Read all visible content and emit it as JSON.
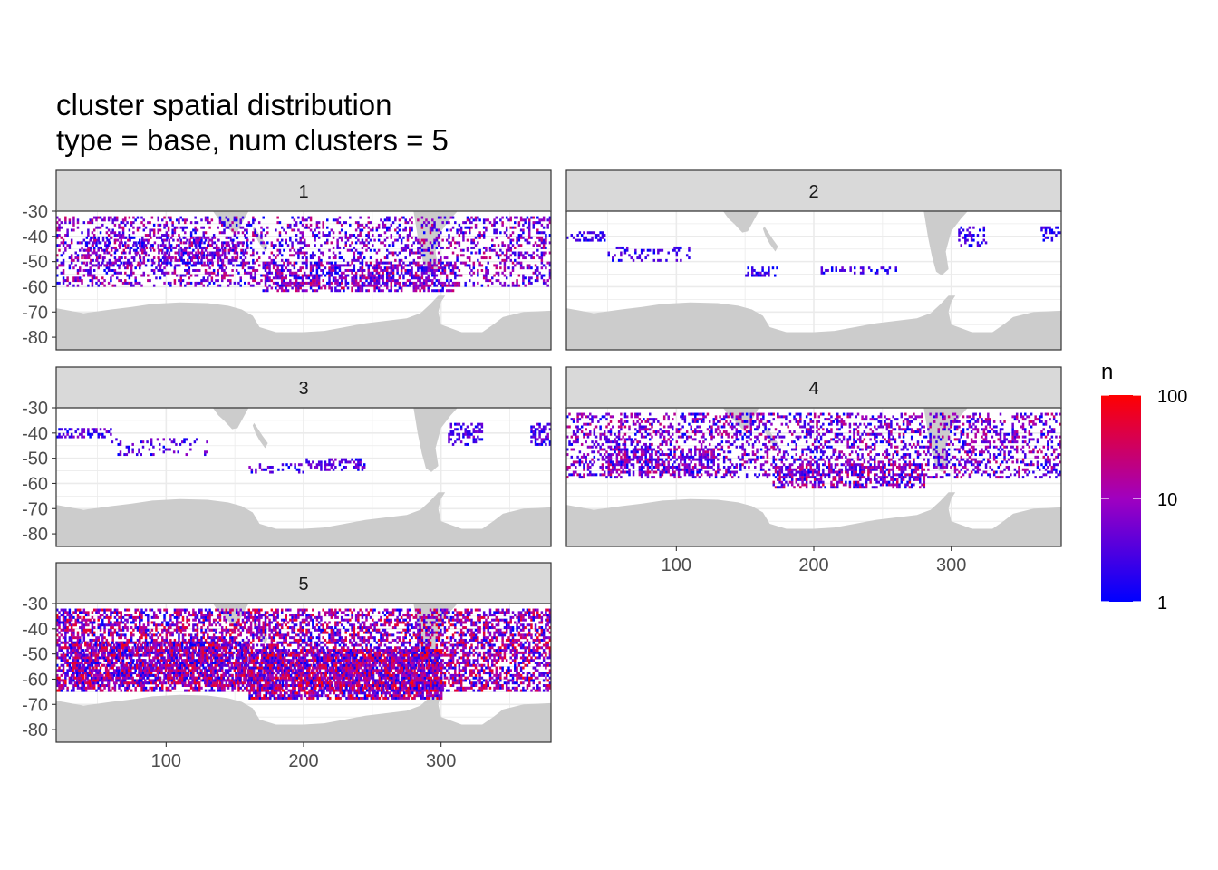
{
  "chart_data": {
    "type": "heatmap",
    "title": "cluster spatial distribution",
    "subtitle": "type = base, num clusters = 5",
    "xlabel": "",
    "ylabel": "",
    "xlim": [
      20,
      380
    ],
    "ylim": [
      -85,
      -30
    ],
    "x_ticks": [
      100,
      200,
      300
    ],
    "y_ticks": [
      -30,
      -40,
      -50,
      -60,
      -70,
      -80
    ],
    "facets": [
      "1",
      "2",
      "3",
      "4",
      "5"
    ],
    "fill_scale": {
      "name": "n",
      "trans": "log10",
      "limits": [
        1,
        100
      ],
      "breaks": [
        1,
        10,
        100
      ],
      "low": "#0000ff",
      "high": "#ff0000"
    },
    "land_color": "#cccccc",
    "panel_background": "#ffffff",
    "strip_background": "#d9d9d9",
    "grid": true,
    "legend_position": "right",
    "clusters": [
      {
        "id": "1",
        "bands": [
          {
            "lon": [
              20,
              380
            ],
            "lat": [
              -60,
              -32
            ],
            "density": 0.3,
            "nmax": 30
          },
          {
            "lon": [
              170,
              310
            ],
            "lat": [
              -62,
              -50
            ],
            "density": 0.45,
            "nmax": 40
          },
          {
            "lon": [
              40,
              160
            ],
            "lat": [
              -52,
              -40
            ],
            "density": 0.35,
            "nmax": 30
          }
        ]
      },
      {
        "id": "2",
        "bands": [
          {
            "lon": [
              20,
              50
            ],
            "lat": [
              -42,
              -38
            ],
            "density": 0.45,
            "nmax": 5
          },
          {
            "lon": [
              50,
              110
            ],
            "lat": [
              -50,
              -44
            ],
            "density": 0.25,
            "nmax": 5
          },
          {
            "lon": [
              150,
              175
            ],
            "lat": [
              -56,
              -52
            ],
            "density": 0.35,
            "nmax": 5
          },
          {
            "lon": [
              205,
              260
            ],
            "lat": [
              -55,
              -52
            ],
            "density": 0.3,
            "nmax": 5
          },
          {
            "lon": [
              305,
              325
            ],
            "lat": [
              -44,
              -36
            ],
            "density": 0.35,
            "nmax": 5
          },
          {
            "lon": [
              365,
              380
            ],
            "lat": [
              -42,
              -36
            ],
            "density": 0.5,
            "nmax": 5
          }
        ]
      },
      {
        "id": "3",
        "bands": [
          {
            "lon": [
              20,
              60
            ],
            "lat": [
              -42,
              -38
            ],
            "density": 0.5,
            "nmax": 8
          },
          {
            "lon": [
              60,
              130
            ],
            "lat": [
              -49,
              -42
            ],
            "density": 0.2,
            "nmax": 8
          },
          {
            "lon": [
              160,
              200
            ],
            "lat": [
              -56,
              -52
            ],
            "density": 0.25,
            "nmax": 8
          },
          {
            "lon": [
              200,
              245
            ],
            "lat": [
              -55,
              -50
            ],
            "density": 0.4,
            "nmax": 8
          },
          {
            "lon": [
              305,
              330
            ],
            "lat": [
              -45,
              -36
            ],
            "density": 0.4,
            "nmax": 8
          },
          {
            "lon": [
              365,
              380
            ],
            "lat": [
              -45,
              -36
            ],
            "density": 0.55,
            "nmax": 8
          }
        ]
      },
      {
        "id": "4",
        "bands": [
          {
            "lon": [
              20,
              380
            ],
            "lat": [
              -58,
              -32
            ],
            "density": 0.35,
            "nmax": 30
          },
          {
            "lon": [
              170,
              280
            ],
            "lat": [
              -62,
              -52
            ],
            "density": 0.55,
            "nmax": 50
          },
          {
            "lon": [
              50,
              130
            ],
            "lat": [
              -56,
              -46
            ],
            "density": 0.45,
            "nmax": 30
          }
        ]
      },
      {
        "id": "5",
        "bands": [
          {
            "lon": [
              20,
              380
            ],
            "lat": [
              -65,
              -32
            ],
            "density": 0.55,
            "nmax": 80
          },
          {
            "lon": [
              160,
              300
            ],
            "lat": [
              -68,
              -48
            ],
            "density": 0.75,
            "nmax": 100
          },
          {
            "lon": [
              30,
              160
            ],
            "lat": [
              -62,
              -45
            ],
            "density": 0.65,
            "nmax": 80
          }
        ]
      }
    ]
  }
}
